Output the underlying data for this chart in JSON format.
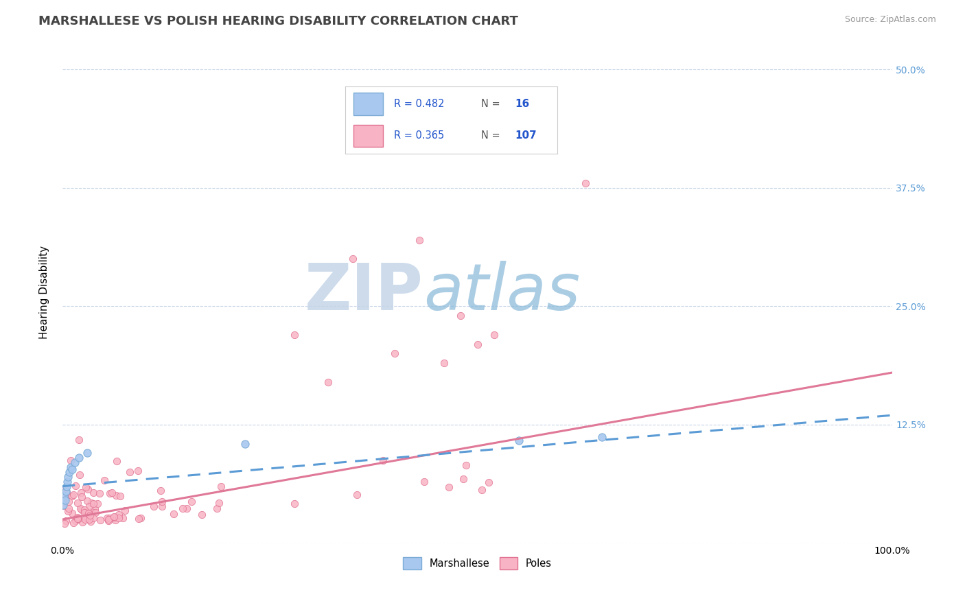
{
  "title": "MARSHALLESE VS POLISH HEARING DISABILITY CORRELATION CHART",
  "source": "Source: ZipAtlas.com",
  "ylabel": "Hearing Disability",
  "xlim": [
    0.0,
    1.0
  ],
  "ylim": [
    0.0,
    0.53
  ],
  "yticks": [
    0.0,
    0.125,
    0.25,
    0.375,
    0.5
  ],
  "right_ytick_labels": [
    "12.5%",
    "25.0%",
    "37.5%",
    "50.0%"
  ],
  "marshallese_color": "#a8c8f0",
  "marshallese_edge": "#7aaad4",
  "polish_color": "#f8b4c4",
  "polish_edge": "#e07090",
  "marshallese_line_color": "#5b9bd5",
  "polish_line_color": "#e07898",
  "background_color": "#ffffff",
  "grid_color": "#c8d4e8",
  "R_marshallese": 0.482,
  "N_marshallese": 16,
  "R_polish": 0.365,
  "N_polish": 107,
  "watermark_zip_color": "#c8d8ee",
  "watermark_atlas_color": "#88b8d8",
  "legend_blue": "#2255cc",
  "legend_box_color": "#f0f4fc",
  "title_fontsize": 13,
  "axis_label_fontsize": 11,
  "tick_fontsize": 10,
  "source_fontsize": 9,
  "legend_fontsize": 11
}
